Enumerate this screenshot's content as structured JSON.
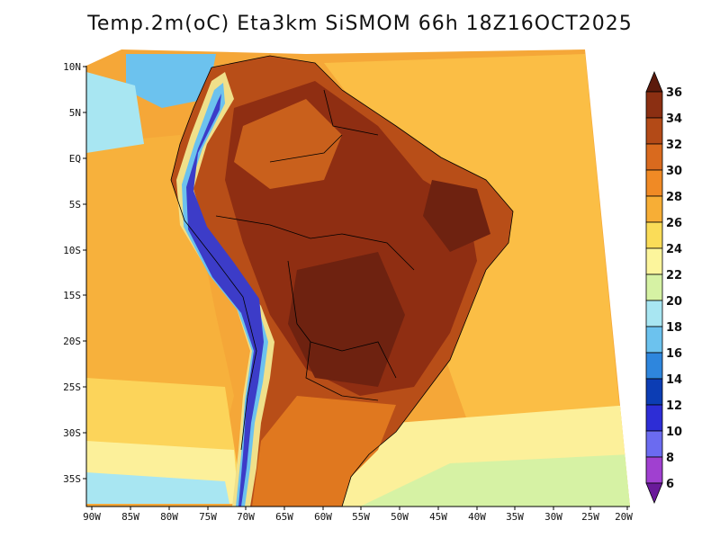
{
  "title": "Temp.2m(oC) Eta3km SiSMOM 66h 18Z16OCT2025",
  "lat_labels": [
    "10N",
    "5N",
    "EQ",
    "5S",
    "10S",
    "15S",
    "20S",
    "25S",
    "30S",
    "35S"
  ],
  "lon_labels": [
    "90W",
    "85W",
    "80W",
    "75W",
    "70W",
    "65W",
    "60W",
    "55W",
    "50W",
    "45W",
    "40W",
    "35W",
    "30W",
    "25W",
    "20W"
  ],
  "colorbar": {
    "labels": [
      "36",
      "34",
      "32",
      "30",
      "28",
      "26",
      "24",
      "22",
      "20",
      "18",
      "16",
      "14",
      "12",
      "10",
      "8",
      "6"
    ],
    "colors": [
      "#5c1a0c",
      "#8b2f12",
      "#b34a17",
      "#d96a1e",
      "#f08a25",
      "#f7ae36",
      "#fadc58",
      "#fcf59c",
      "#d6f2a4",
      "#a8e6f2",
      "#6cc2ee",
      "#2e86dd",
      "#0c3db4",
      "#2d2dd6",
      "#6b6bf0",
      "#a040d0",
      "#6a1a9a"
    ]
  },
  "colors": {
    "ocean_warm": "#fbb040",
    "ocean_mid": "#f5a738",
    "land_hot": "#a33d12",
    "land_very_hot": "#6e2210",
    "andes_cold": "#3c3cc8",
    "coast_cool": "#ffe98a",
    "south_cool": "#c8f0a4"
  }
}
